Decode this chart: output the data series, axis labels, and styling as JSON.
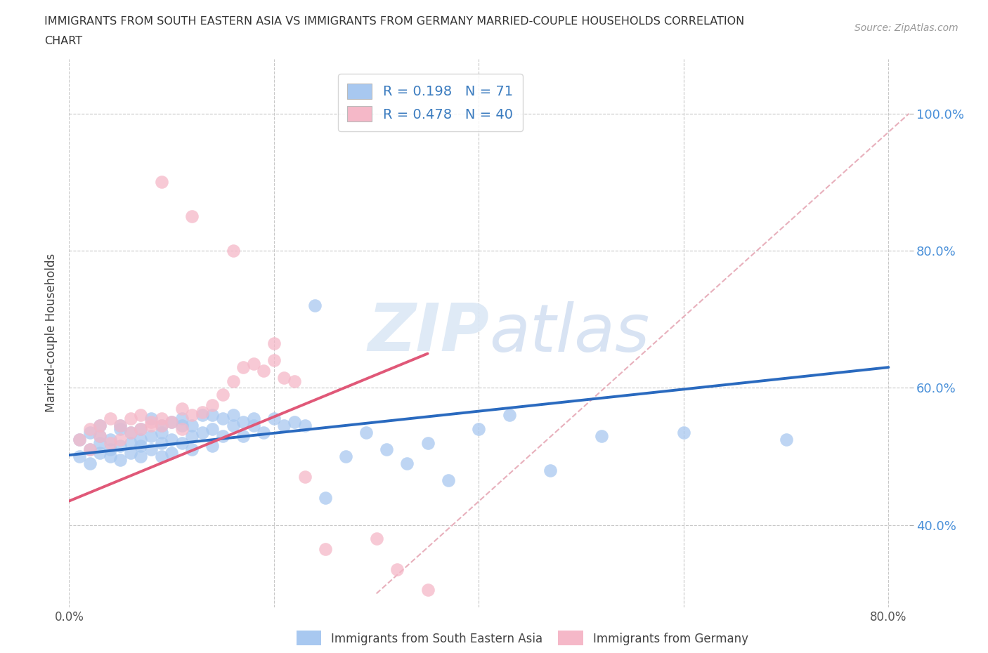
{
  "title_line1": "IMMIGRANTS FROM SOUTH EASTERN ASIA VS IMMIGRANTS FROM GERMANY MARRIED-COUPLE HOUSEHOLDS CORRELATION",
  "title_line2": "CHART",
  "source": "Source: ZipAtlas.com",
  "ylabel": "Married-couple Households",
  "xlim": [
    0.0,
    0.82
  ],
  "ylim": [
    0.28,
    1.08
  ],
  "xtick_vals": [
    0.0,
    0.2,
    0.4,
    0.6,
    0.8
  ],
  "xtick_labels": [
    "0.0%",
    "",
    "",
    "",
    "80.0%"
  ],
  "ytick_vals": [
    0.4,
    0.6,
    0.8,
    1.0
  ],
  "ytick_labels": [
    "40.0%",
    "60.0%",
    "80.0%",
    "100.0%"
  ],
  "blue_color": "#a8c8f0",
  "pink_color": "#f5b8c8",
  "blue_line_color": "#2a6abf",
  "pink_line_color": "#e05878",
  "ref_line_color": "#e8b0bc",
  "watermark_color": "#dce8f5",
  "blue_scatter_x": [
    0.01,
    0.01,
    0.02,
    0.02,
    0.02,
    0.03,
    0.03,
    0.03,
    0.03,
    0.04,
    0.04,
    0.04,
    0.05,
    0.05,
    0.05,
    0.05,
    0.06,
    0.06,
    0.06,
    0.07,
    0.07,
    0.07,
    0.07,
    0.08,
    0.08,
    0.08,
    0.09,
    0.09,
    0.09,
    0.09,
    0.1,
    0.1,
    0.1,
    0.11,
    0.11,
    0.11,
    0.12,
    0.12,
    0.12,
    0.13,
    0.13,
    0.14,
    0.14,
    0.14,
    0.15,
    0.15,
    0.16,
    0.16,
    0.17,
    0.17,
    0.18,
    0.18,
    0.19,
    0.2,
    0.21,
    0.22,
    0.23,
    0.24,
    0.25,
    0.27,
    0.29,
    0.31,
    0.33,
    0.35,
    0.37,
    0.4,
    0.43,
    0.47,
    0.52,
    0.6,
    0.7
  ],
  "blue_scatter_y": [
    0.525,
    0.5,
    0.535,
    0.51,
    0.49,
    0.53,
    0.505,
    0.545,
    0.52,
    0.5,
    0.525,
    0.51,
    0.54,
    0.515,
    0.495,
    0.545,
    0.52,
    0.505,
    0.535,
    0.54,
    0.515,
    0.525,
    0.5,
    0.53,
    0.555,
    0.51,
    0.545,
    0.52,
    0.535,
    0.5,
    0.55,
    0.525,
    0.505,
    0.545,
    0.52,
    0.555,
    0.53,
    0.545,
    0.51,
    0.535,
    0.56,
    0.54,
    0.56,
    0.515,
    0.555,
    0.53,
    0.545,
    0.56,
    0.55,
    0.53,
    0.555,
    0.545,
    0.535,
    0.555,
    0.545,
    0.55,
    0.545,
    0.72,
    0.44,
    0.5,
    0.535,
    0.51,
    0.49,
    0.52,
    0.465,
    0.54,
    0.56,
    0.48,
    0.53,
    0.535,
    0.525
  ],
  "pink_scatter_x": [
    0.01,
    0.02,
    0.02,
    0.03,
    0.03,
    0.04,
    0.04,
    0.05,
    0.05,
    0.06,
    0.06,
    0.07,
    0.07,
    0.08,
    0.08,
    0.09,
    0.09,
    0.1,
    0.11,
    0.11,
    0.12,
    0.13,
    0.14,
    0.15,
    0.16,
    0.17,
    0.18,
    0.19,
    0.2,
    0.21,
    0.22,
    0.23,
    0.25,
    0.3,
    0.32,
    0.35,
    0.2,
    0.16,
    0.12,
    0.09
  ],
  "pink_scatter_y": [
    0.525,
    0.51,
    0.54,
    0.53,
    0.545,
    0.52,
    0.555,
    0.525,
    0.545,
    0.535,
    0.555,
    0.54,
    0.56,
    0.545,
    0.55,
    0.545,
    0.555,
    0.55,
    0.57,
    0.54,
    0.56,
    0.565,
    0.575,
    0.59,
    0.61,
    0.63,
    0.635,
    0.625,
    0.64,
    0.615,
    0.61,
    0.47,
    0.365,
    0.38,
    0.335,
    0.305,
    0.665,
    0.8,
    0.85,
    0.9
  ],
  "blue_trend_x": [
    0.0,
    0.8
  ],
  "blue_trend_y": [
    0.502,
    0.63
  ],
  "pink_trend_x": [
    0.0,
    0.35
  ],
  "pink_trend_y": [
    0.435,
    0.65
  ],
  "ref_line_x": [
    0.3,
    0.82
  ],
  "ref_line_y": [
    0.3,
    1.0
  ]
}
